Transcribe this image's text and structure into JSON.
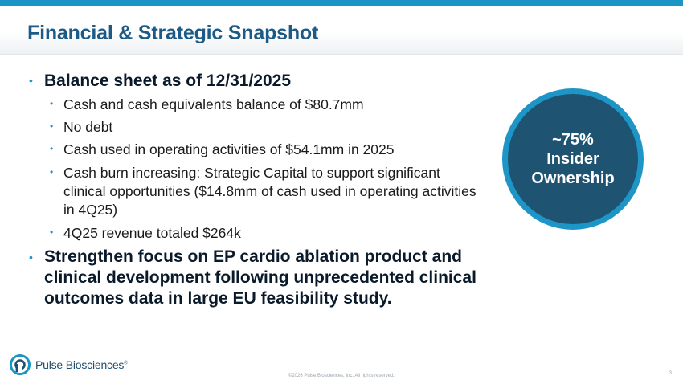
{
  "slide": {
    "title": "Financial & Strategic Snapshot",
    "bullets": {
      "balance_heading": "Balance sheet as of 12/31/2025",
      "sub": [
        "Cash and cash equivalents balance of $80.7mm",
        "No debt",
        "Cash used in operating activities of $54.1mm in 2025",
        "Cash burn increasing: Strategic Capital to support significant clinical opportunities ($14.8mm of cash used in operating activities in 4Q25)",
        "4Q25 revenue totaled $264k"
      ],
      "strategy_heading": "Strengthen focus on EP cardio ablation product and clinical development following unprecedented clinical outcomes data in large EU feasibility study."
    },
    "callout": "~75%\nInsider\nOwnership",
    "bullet_glyph": "•"
  },
  "branding": {
    "logo_text": "Pulse Biosciences",
    "logo_mark": "®",
    "copyright": "©2026 Pulse Biosciences, Inc. All rights reserved.",
    "page_number": "3"
  },
  "colors": {
    "accent": "#1b95c6",
    "title": "#1d5b86",
    "circle_fill": "#1e5472"
  }
}
